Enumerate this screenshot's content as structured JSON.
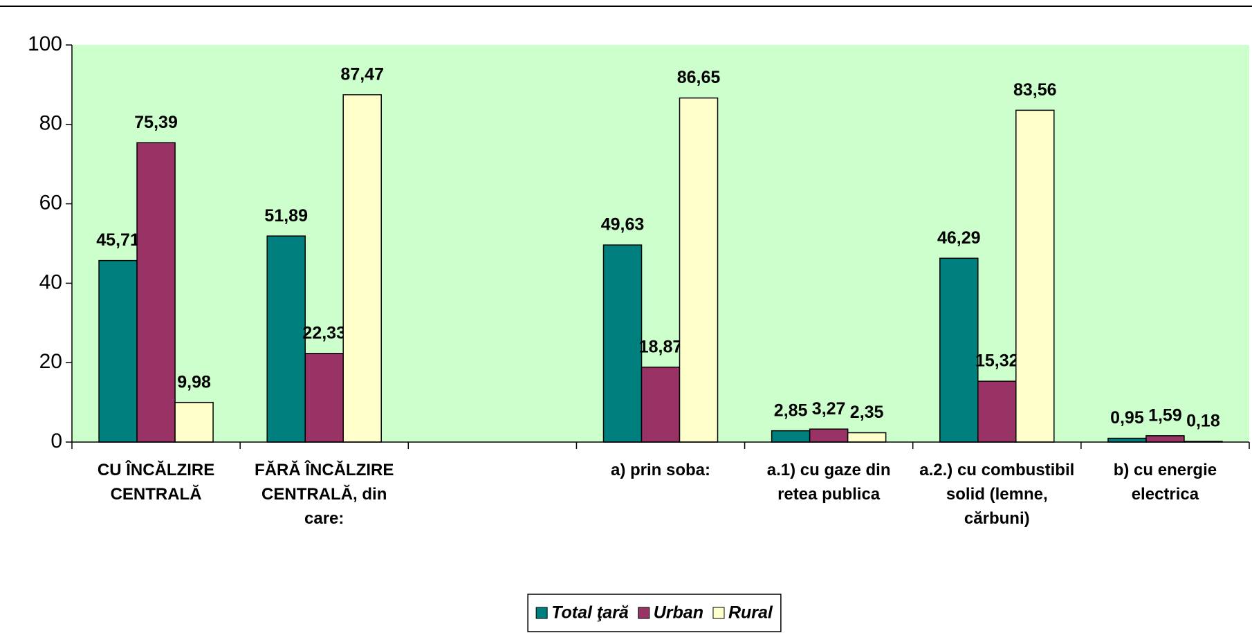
{
  "chart_data": {
    "type": "bar",
    "categories": [
      "CU ÎNCĂLZIRE CENTRALĂ",
      "FĂRĂ ÎNCĂLZIRE CENTRALĂ, din care:",
      null,
      "a) prin soba:",
      "a.1) cu gaze din retea publica",
      "a.2.) cu combustibil solid (lemne, cărbuni)",
      "b) cu energie electrica"
    ],
    "series": [
      {
        "name": "Total ţară",
        "color": "#007f7f",
        "values": [
          45.71,
          51.89,
          null,
          49.63,
          2.85,
          46.29,
          0.95
        ],
        "value_labels": [
          "45,71",
          "51,89",
          null,
          "49,63",
          "2,85",
          "46,29",
          "0,95"
        ]
      },
      {
        "name": "Urban",
        "color": "#993366",
        "values": [
          75.39,
          22.33,
          null,
          18.87,
          3.27,
          15.32,
          1.59
        ],
        "value_labels": [
          "75,39",
          "22,33",
          null,
          "18,87",
          "3,27",
          "15,32",
          "1,59"
        ]
      },
      {
        "name": "Rural",
        "color": "#ffffcc",
        "values": [
          9.98,
          87.47,
          null,
          86.65,
          2.35,
          83.56,
          0.18
        ],
        "value_labels": [
          "9,98",
          "87,47",
          null,
          "86,65",
          "2,35",
          "83,56",
          "0,18"
        ]
      }
    ],
    "ylim": [
      0,
      100
    ],
    "yticks": [
      0,
      20,
      40,
      60,
      80,
      100
    ],
    "plot_background": "#ccffcc",
    "legend": "bottom"
  }
}
